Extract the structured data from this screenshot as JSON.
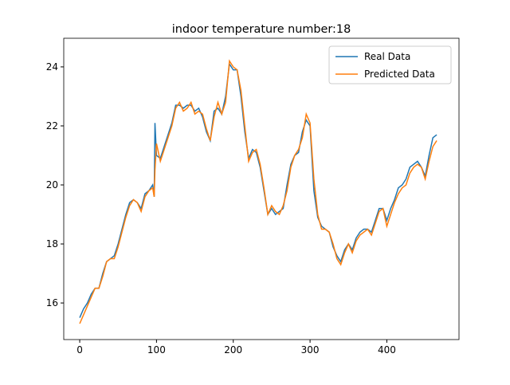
{
  "chart_data": {
    "type": "line",
    "title": "indoor temperature number:18",
    "x": [
      0,
      5,
      10,
      15,
      20,
      25,
      30,
      35,
      40,
      45,
      50,
      55,
      60,
      65,
      70,
      75,
      80,
      85,
      90,
      95,
      97,
      98,
      100,
      105,
      110,
      115,
      120,
      125,
      130,
      135,
      140,
      145,
      150,
      155,
      160,
      165,
      170,
      175,
      180,
      185,
      190,
      195,
      200,
      205,
      210,
      215,
      220,
      225,
      230,
      235,
      240,
      245,
      250,
      255,
      260,
      265,
      270,
      275,
      280,
      285,
      290,
      295,
      300,
      305,
      310,
      315,
      320,
      325,
      330,
      335,
      340,
      345,
      350,
      355,
      360,
      365,
      370,
      375,
      380,
      385,
      390,
      395,
      400,
      405,
      410,
      415,
      420,
      425,
      430,
      435,
      440,
      445,
      450,
      455,
      460,
      465
    ],
    "series": [
      {
        "name": "Real Data",
        "color": "#1f77b4",
        "values": [
          15.5,
          15.8,
          16.0,
          16.3,
          16.5,
          16.5,
          17.0,
          17.4,
          17.5,
          17.6,
          18.0,
          18.5,
          19.0,
          19.4,
          19.5,
          19.4,
          19.2,
          19.7,
          19.8,
          20.0,
          19.6,
          22.1,
          21.0,
          20.9,
          21.3,
          21.7,
          22.1,
          22.7,
          22.7,
          22.6,
          22.7,
          22.7,
          22.5,
          22.6,
          22.3,
          21.8,
          21.5,
          22.5,
          22.6,
          22.4,
          23.0,
          24.1,
          23.9,
          23.9,
          23.0,
          21.8,
          20.9,
          21.2,
          21.1,
          20.6,
          19.8,
          19.0,
          19.2,
          19.0,
          19.1,
          19.2,
          20.0,
          20.7,
          21.0,
          21.1,
          21.8,
          22.2,
          22.0,
          19.8,
          18.9,
          18.6,
          18.5,
          18.4,
          17.9,
          17.6,
          17.4,
          17.8,
          18.0,
          17.8,
          18.2,
          18.4,
          18.5,
          18.5,
          18.4,
          18.8,
          19.2,
          19.2,
          18.8,
          19.2,
          19.5,
          19.9,
          20.0,
          20.2,
          20.6,
          20.7,
          20.8,
          20.6,
          20.3,
          21.0,
          21.6,
          21.7
        ]
      },
      {
        "name": "Predicted Data",
        "color": "#ff7f0e",
        "values": [
          15.3,
          15.6,
          15.9,
          16.2,
          16.5,
          16.5,
          16.9,
          17.4,
          17.5,
          17.5,
          17.9,
          18.4,
          18.9,
          19.3,
          19.5,
          19.4,
          19.1,
          19.6,
          19.8,
          19.9,
          19.6,
          20.5,
          21.4,
          20.8,
          21.2,
          21.6,
          22.0,
          22.6,
          22.8,
          22.5,
          22.6,
          22.8,
          22.4,
          22.5,
          22.4,
          21.9,
          21.5,
          22.3,
          22.8,
          22.4,
          22.8,
          24.2,
          24.0,
          23.9,
          23.2,
          22.0,
          20.8,
          21.1,
          21.2,
          20.7,
          19.9,
          19.0,
          19.3,
          19.1,
          19.0,
          19.3,
          19.8,
          20.6,
          21.0,
          21.2,
          21.6,
          22.4,
          22.1,
          20.2,
          19.0,
          18.5,
          18.5,
          18.4,
          18.0,
          17.5,
          17.3,
          17.7,
          18.0,
          17.7,
          18.1,
          18.3,
          18.4,
          18.5,
          18.3,
          18.7,
          19.1,
          19.2,
          18.6,
          19.0,
          19.4,
          19.7,
          19.9,
          20.0,
          20.4,
          20.6,
          20.7,
          20.6,
          20.2,
          20.8,
          21.3,
          21.5
        ]
      }
    ],
    "xlim": [
      -20.8,
      494
    ],
    "xticks": [
      0,
      100,
      200,
      300,
      400
    ],
    "ylim": [
      14.76,
      24.97
    ],
    "yticks": [
      16,
      18,
      20,
      22,
      24
    ],
    "legend": "upper right"
  }
}
